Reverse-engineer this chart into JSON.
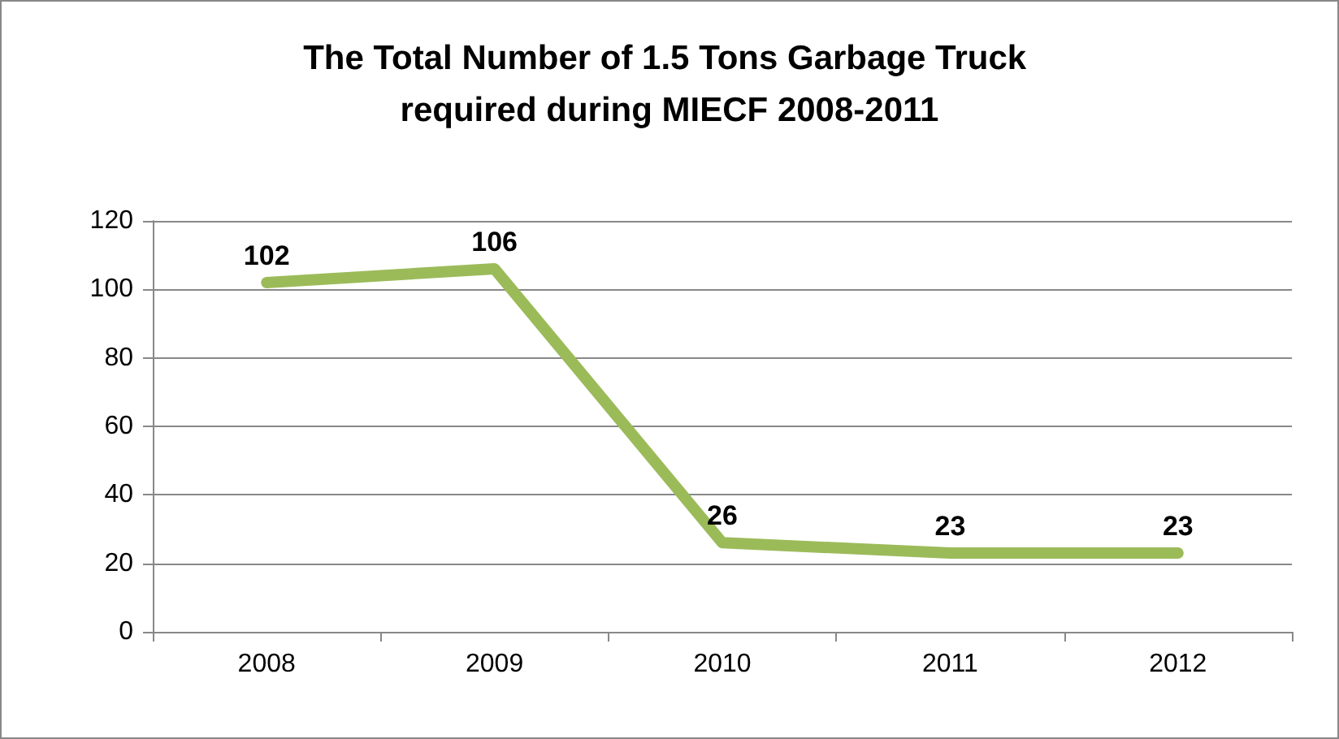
{
  "chart_data": {
    "type": "line",
    "title": "The Total Number of 1.5 Tons Garbage Truck required during MIECF 2008-2011",
    "categories": [
      "2008",
      "2009",
      "2010",
      "2011",
      "2012"
    ],
    "series": [
      {
        "color": "#9bbb59",
        "values": [
          102,
          106,
          26,
          23,
          23
        ]
      }
    ],
    "ylim": [
      0,
      120
    ],
    "yticks": [
      0,
      20,
      40,
      60,
      80,
      100,
      120
    ],
    "grid": "y",
    "data_labels": true,
    "marker": "none",
    "line_style": "solid"
  }
}
